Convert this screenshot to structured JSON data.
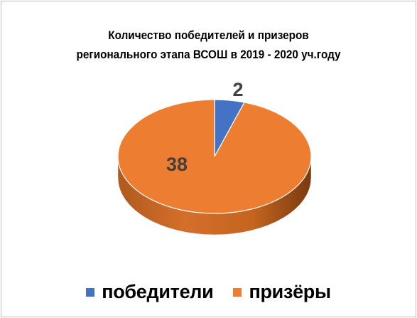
{
  "chart_data": {
    "type": "pie",
    "title_lines": [
      "Количество победителей и призеров",
      "регионального этапа ВСОШ в 2019 - 2020 уч.году"
    ],
    "slices": [
      {
        "label": "победители",
        "value": 2,
        "color": "#4472c4"
      },
      {
        "label": "призёры",
        "value": 38,
        "color": "#ed7d31"
      }
    ],
    "legend_position": "bottom",
    "data_labels": [
      "2",
      "38"
    ],
    "style": "3d"
  }
}
